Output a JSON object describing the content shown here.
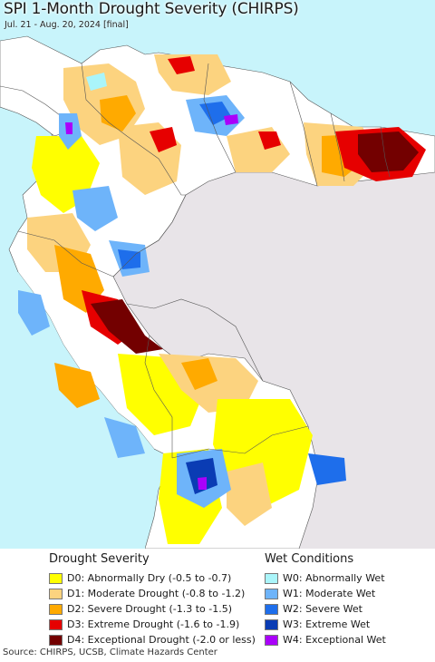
{
  "header": {
    "title": "SPI 1-Month Drought Severity (CHIRPS)",
    "subtitle": "Jul. 21 - Aug. 20, 2024 [final]"
  },
  "map": {
    "ocean_color": "#c8f4fb",
    "outside_color": "#e8e4e8",
    "land_base_color": "#ffffff",
    "border_color": "#555555"
  },
  "legend": {
    "drought": {
      "heading": "Drought Severity",
      "items": [
        {
          "label": "D0: Abnormally Dry (-0.5 to -0.7)",
          "color": "#ffff00"
        },
        {
          "label": "D1: Moderate Drought (-0.8 to -1.2)",
          "color": "#fcd37f"
        },
        {
          "label": "D2: Severe Drought (-1.3 to -1.5)",
          "color": "#ffaa00"
        },
        {
          "label": "D3: Extreme Drought (-1.6 to -1.9)",
          "color": "#e60000"
        },
        {
          "label": "D4: Exceptional Drought (-2.0 or less)",
          "color": "#730000"
        }
      ]
    },
    "wet": {
      "heading": "Wet Conditions",
      "items": [
        {
          "label": "W0: Abnormally Wet",
          "color": "#aaf5fa"
        },
        {
          "label": "W1: Moderate Wet",
          "color": "#6eb4fa"
        },
        {
          "label": "W2: Severe Wet",
          "color": "#1e6eeb"
        },
        {
          "label": "W3: Extreme Wet",
          "color": "#0a3cb4"
        },
        {
          "label": "W4: Exceptional Wet",
          "color": "#aa00fa"
        }
      ]
    }
  },
  "footer": {
    "source": "Source: CHIRPS, UCSB, Climate Hazards Center"
  }
}
